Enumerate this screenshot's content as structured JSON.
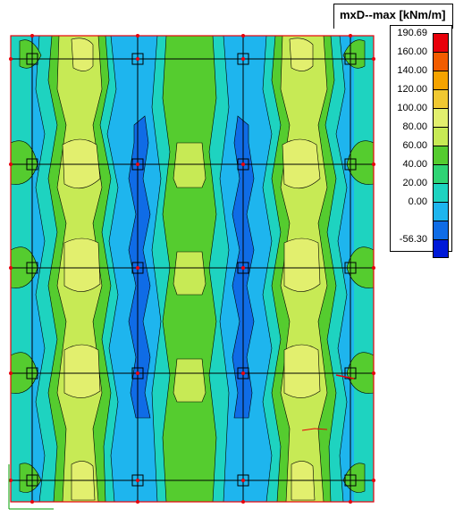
{
  "legend": {
    "title": "mxD--max [kNm/m]",
    "levels": [
      {
        "label": "190.69",
        "color": "#e8000a"
      },
      {
        "label": "160.00",
        "color": "#f25c00"
      },
      {
        "label": "140.00",
        "color": "#f5a300"
      },
      {
        "label": "120.00",
        "color": "#f0c832"
      },
      {
        "label": "100.00",
        "color": "#e2ef6e"
      },
      {
        "label": "80.00",
        "color": "#c7ea55"
      },
      {
        "label": "60.00",
        "color": "#55cc2f"
      },
      {
        "label": "40.00",
        "color": "#2fd474"
      },
      {
        "label": "20.00",
        "color": "#1ed3c0"
      },
      {
        "label": "0.00",
        "color": "#1eb5ee"
      },
      {
        "label": "",
        "color": "#0f6ce6"
      },
      {
        "label": "-56.30",
        "color": "#0019d8"
      }
    ]
  },
  "colors": {
    "band_low": "#1eb5ee",
    "band_mid": "#1ed3c0",
    "band_high": "#55cc2f",
    "band_top": "#c7ea55",
    "peak": "#e2ef6e",
    "neg": "#0f6ce6",
    "grid": "#000000",
    "node": "#e8000a"
  }
}
